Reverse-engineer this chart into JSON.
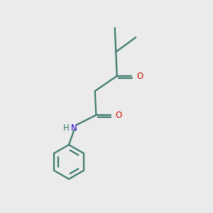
{
  "background_color": "#ebebeb",
  "bond_color": "#3d7a6e",
  "O_color": "#cc1100",
  "N_color": "#2200cc",
  "lw": 1.6,
  "fig_size": [
    3.0,
    3.0
  ],
  "dpi": 100,
  "xlim": [
    0,
    10
  ],
  "ylim": [
    0,
    10
  ]
}
